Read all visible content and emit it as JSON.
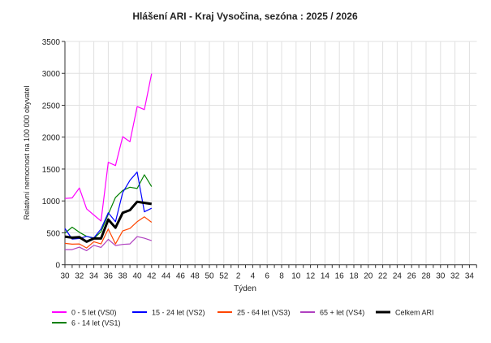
{
  "chart_data": {
    "type": "line",
    "title": "Hlášení ARI   -   Kraj Vysočina, sezóna : 2025 / 2026",
    "xlabel": "Týden",
    "ylabel": "Relativní nemocnost na 100 000 obyvatel",
    "ylim": [
      0,
      3500
    ],
    "yticks": [
      0,
      500,
      1000,
      1500,
      2000,
      2500,
      3000,
      3500
    ],
    "weeks": [
      30,
      31,
      32,
      33,
      34,
      35,
      36,
      37,
      38,
      39,
      40,
      41,
      42,
      43,
      44,
      45,
      46,
      47,
      48,
      49,
      50,
      51,
      52,
      1,
      2,
      3,
      4,
      5,
      6,
      7,
      8,
      9,
      10,
      11,
      12,
      13,
      14,
      15,
      16,
      17,
      18,
      19,
      20,
      21,
      22,
      23,
      24,
      25,
      26,
      27,
      28,
      29,
      30,
      31,
      32,
      33,
      34,
      35
    ],
    "xtick_labels": [
      "30",
      "32",
      "34",
      "36",
      "38",
      "40",
      "42",
      "44",
      "46",
      "48",
      "50",
      "52",
      "2",
      "4",
      "6",
      "8",
      "10",
      "12",
      "14",
      "16",
      "18",
      "20",
      "22",
      "24",
      "26",
      "28",
      "30",
      "32",
      "34"
    ],
    "grid": true,
    "legend_position": "bottom",
    "series": [
      {
        "name": "0 - 5 let (VS0)",
        "color": "#ff00ff",
        "width": 1.2,
        "values": [
          1038,
          1047,
          1203,
          877,
          780,
          686,
          1606,
          1555,
          2008,
          1928,
          2479,
          2432,
          2996
        ]
      },
      {
        "name": "15 - 24 let (VS2)",
        "color": "#0000ff",
        "width": 1.2,
        "values": [
          568,
          403,
          411,
          445,
          420,
          560,
          814,
          674,
          1131,
          1322,
          1453,
          830,
          886
        ]
      },
      {
        "name": "25 - 64 let (VS3)",
        "color": "#ff4500",
        "width": 1.2,
        "values": [
          335,
          322,
          326,
          263,
          360,
          326,
          560,
          326,
          530,
          568,
          674,
          750,
          665
        ]
      },
      {
        "name": "65 + let (VS4)",
        "color": "#b040c0",
        "width": 1.2,
        "values": [
          237,
          237,
          275,
          220,
          305,
          271,
          398,
          301,
          318,
          326,
          441,
          415,
          377
        ]
      },
      {
        "name": "Celkem ARI",
        "color": "#000000",
        "width": 3,
        "values": [
          441,
          424,
          432,
          360,
          411,
          411,
          708,
          581,
          814,
          856,
          987,
          970,
          953
        ]
      },
      {
        "name": "6 - 14 let (VS1)",
        "color": "#008000",
        "width": 1.2,
        "values": [
          496,
          589,
          508,
          445,
          411,
          517,
          792,
          1055,
          1165,
          1216,
          1195,
          1411,
          1225
        ]
      }
    ]
  }
}
